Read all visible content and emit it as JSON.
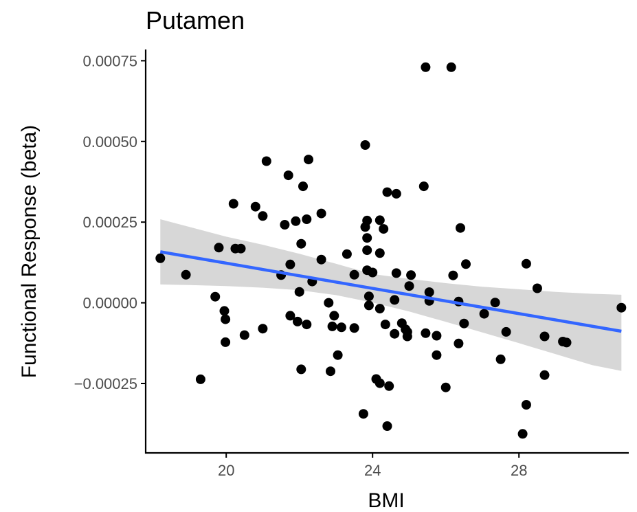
{
  "chart_data": {
    "type": "scatter",
    "title": "Putamen",
    "xlabel": "BMI",
    "ylabel": "Functional Response (beta)",
    "xlim": [
      17.8,
      31.0
    ],
    "ylim": [
      -0.000465,
      0.000785
    ],
    "x_ticks": [
      20,
      24,
      28
    ],
    "x_tick_labels": [
      "20",
      "24",
      "28"
    ],
    "y_ticks": [
      0.00075,
      0.0005,
      0.00025,
      0.0,
      -0.00025
    ],
    "y_tick_labels": [
      "0.00075",
      "0.00050",
      "0.00025",
      "0.00000",
      "−0.00025"
    ],
    "grid": false,
    "legend": "none",
    "colors": {
      "points": "#000000",
      "fit_line": "#3366FF",
      "confidence_band": "#D3D3D3"
    },
    "points": [
      {
        "x": 18.2,
        "y": 0.000138
      },
      {
        "x": 18.9,
        "y": 8.7e-05
      },
      {
        "x": 19.3,
        "y": -0.000237
      },
      {
        "x": 19.7,
        "y": 1.9e-05
      },
      {
        "x": 19.8,
        "y": 0.000171
      },
      {
        "x": 19.95,
        "y": -2.5e-05
      },
      {
        "x": 19.98,
        "y": -5.1e-05
      },
      {
        "x": 19.98,
        "y": -0.000122
      },
      {
        "x": 20.2,
        "y": 0.000307
      },
      {
        "x": 20.25,
        "y": 0.000168
      },
      {
        "x": 20.4,
        "y": 0.000168
      },
      {
        "x": 20.5,
        "y": -0.0001
      },
      {
        "x": 20.8,
        "y": 0.000298
      },
      {
        "x": 21.0,
        "y": 0.000269
      },
      {
        "x": 21.0,
        "y": -8e-05
      },
      {
        "x": 21.1,
        "y": 0.000439
      },
      {
        "x": 21.5,
        "y": 8.6e-05
      },
      {
        "x": 21.6,
        "y": 0.000242
      },
      {
        "x": 21.7,
        "y": 0.000395
      },
      {
        "x": 21.75,
        "y": -4e-05
      },
      {
        "x": 21.75,
        "y": 0.000119
      },
      {
        "x": 21.9,
        "y": 0.000253
      },
      {
        "x": 21.95,
        "y": -5.8e-05
      },
      {
        "x": 22.0,
        "y": 3.4e-05
      },
      {
        "x": 22.05,
        "y": 0.000183
      },
      {
        "x": 22.05,
        "y": -0.000206
      },
      {
        "x": 22.1,
        "y": 0.000361
      },
      {
        "x": 22.2,
        "y": 0.000259
      },
      {
        "x": 22.2,
        "y": -6.7e-05
      },
      {
        "x": 22.25,
        "y": 0.000444
      },
      {
        "x": 22.35,
        "y": 6.6e-05
      },
      {
        "x": 22.6,
        "y": 0.000277
      },
      {
        "x": 22.6,
        "y": 0.000134
      },
      {
        "x": 22.8,
        "y": 0.0
      },
      {
        "x": 22.85,
        "y": -0.000212
      },
      {
        "x": 22.9,
        "y": -7.3e-05
      },
      {
        "x": 22.95,
        "y": -4e-05
      },
      {
        "x": 23.05,
        "y": -0.000162
      },
      {
        "x": 23.15,
        "y": -7.6e-05
      },
      {
        "x": 23.3,
        "y": 0.000151
      },
      {
        "x": 23.5,
        "y": 8.7e-05
      },
      {
        "x": 23.5,
        "y": -7.8e-05
      },
      {
        "x": 23.75,
        "y": -0.000344
      },
      {
        "x": 23.8,
        "y": 0.000489
      },
      {
        "x": 23.8,
        "y": 0.000235
      },
      {
        "x": 23.85,
        "y": 0.000255
      },
      {
        "x": 23.85,
        "y": 0.000201
      },
      {
        "x": 23.85,
        "y": 0.000163
      },
      {
        "x": 23.85,
        "y": 0.000101
      },
      {
        "x": 23.9,
        "y": 2e-05
      },
      {
        "x": 23.9,
        "y": -8e-06
      },
      {
        "x": 24.0,
        "y": 9.4e-05
      },
      {
        "x": 24.1,
        "y": -0.000236
      },
      {
        "x": 24.2,
        "y": 0.000256
      },
      {
        "x": 24.2,
        "y": 0.000154
      },
      {
        "x": 24.2,
        "y": -1.8e-05
      },
      {
        "x": 24.2,
        "y": -0.000249
      },
      {
        "x": 24.3,
        "y": 0.000229
      },
      {
        "x": 24.35,
        "y": -6.7e-05
      },
      {
        "x": 24.4,
        "y": 0.000343
      },
      {
        "x": 24.4,
        "y": -0.000382
      },
      {
        "x": 24.45,
        "y": -0.000258
      },
      {
        "x": 24.6,
        "y": 9e-06
      },
      {
        "x": 24.6,
        "y": -9.6e-05
      },
      {
        "x": 24.65,
        "y": 9.2e-05
      },
      {
        "x": 24.65,
        "y": 0.000338
      },
      {
        "x": 24.8,
        "y": -6.3e-05
      },
      {
        "x": 24.9,
        "y": -8.2e-05
      },
      {
        "x": 24.95,
        "y": -0.000104
      },
      {
        "x": 24.95,
        "y": -9e-05
      },
      {
        "x": 25.0,
        "y": 5.2e-05
      },
      {
        "x": 25.05,
        "y": 8.6e-05
      },
      {
        "x": 25.4,
        "y": 0.000361
      },
      {
        "x": 25.45,
        "y": -9.4e-05
      },
      {
        "x": 25.45,
        "y": 0.00073
      },
      {
        "x": 25.55,
        "y": 3.3e-05
      },
      {
        "x": 25.55,
        "y": 6e-06
      },
      {
        "x": 25.75,
        "y": -0.000162
      },
      {
        "x": 25.75,
        "y": -0.000102
      },
      {
        "x": 26.0,
        "y": -0.000262
      },
      {
        "x": 26.15,
        "y": 0.00073
      },
      {
        "x": 26.2,
        "y": 8.5e-05
      },
      {
        "x": 26.35,
        "y": -0.000126
      },
      {
        "x": 26.35,
        "y": 4e-06
      },
      {
        "x": 26.4,
        "y": 0.000232
      },
      {
        "x": 26.5,
        "y": -6.4e-05
      },
      {
        "x": 26.55,
        "y": 0.00012
      },
      {
        "x": 27.05,
        "y": -3.4e-05
      },
      {
        "x": 27.35,
        "y": 1e-06
      },
      {
        "x": 27.5,
        "y": -0.000175
      },
      {
        "x": 27.65,
        "y": -9e-05
      },
      {
        "x": 28.1,
        "y": -0.000406
      },
      {
        "x": 28.2,
        "y": 0.000121
      },
      {
        "x": 28.2,
        "y": -0.000316
      },
      {
        "x": 28.5,
        "y": 4.5e-05
      },
      {
        "x": 28.7,
        "y": -0.000104
      },
      {
        "x": 28.7,
        "y": -0.000224
      },
      {
        "x": 29.2,
        "y": -0.00012
      },
      {
        "x": 29.3,
        "y": -0.000123
      },
      {
        "x": 30.8,
        "y": -1.5e-05
      }
    ],
    "fit_line": {
      "x": [
        18.2,
        30.8
      ],
      "y": [
        0.000158,
        -8.8e-05
      ]
    },
    "confidence_band": {
      "x": [
        18.2,
        19.0,
        20.0,
        21.0,
        22.0,
        23.0,
        24.0,
        25.0,
        26.0,
        27.0,
        28.0,
        29.0,
        30.0,
        30.8
      ],
      "lower": [
        5.7e-05,
        5.5e-05,
        5.2e-05,
        4.7e-05,
        3.9e-05,
        2.4e-05,
        1e-06,
        -2.7e-05,
        -5.9e-05,
        -9.2e-05,
        -0.000125,
        -0.000159,
        -0.000193,
        -0.000211
      ],
      "upper": [
        0.000259,
        0.000235,
        0.000205,
        0.00018,
        0.000152,
        0.000121,
        8.9e-05,
        7.4e-05,
        6.1e-05,
        5e-05,
        4.2e-05,
        3.4e-05,
        2.8e-05,
        2.5e-05
      ]
    }
  }
}
